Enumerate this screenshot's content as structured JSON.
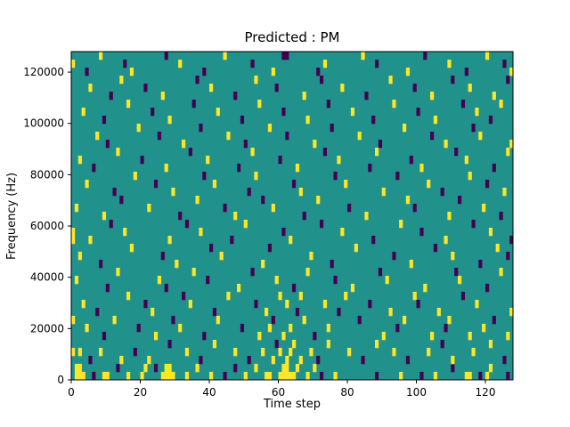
{
  "chart_data": {
    "type": "heatmap",
    "title": "Predicted : PM",
    "xlabel": "Time step",
    "ylabel": "Frequency (Hz)",
    "x_range": [
      0,
      128
    ],
    "y_range": [
      0,
      128000
    ],
    "x_ticks": [
      0,
      20,
      40,
      60,
      80,
      100,
      120
    ],
    "y_ticks": [
      0,
      20000,
      40000,
      60000,
      80000,
      100000,
      120000
    ],
    "grid_cols": 128,
    "grid_rows": 41,
    "colors": {
      "background": "#21918c",
      "low": "#440154",
      "high": "#fde725"
    },
    "legend": "none",
    "grid": false,
    "cells": [
      [
        1,
        0,
        1
      ],
      [
        2,
        0,
        1
      ],
      [
        1,
        1,
        1
      ],
      [
        2,
        1,
        1
      ],
      [
        3,
        0,
        1
      ],
      [
        0,
        3,
        1
      ],
      [
        0,
        7,
        1
      ],
      [
        0,
        17,
        1
      ],
      [
        6,
        0,
        0
      ],
      [
        9,
        0,
        1
      ],
      [
        10,
        0,
        1
      ],
      [
        13,
        1,
        0
      ],
      [
        16,
        0,
        1
      ],
      [
        20,
        0,
        1
      ],
      [
        21,
        1,
        1
      ],
      [
        24,
        1,
        0
      ],
      [
        26,
        0,
        1
      ],
      [
        27,
        0,
        1
      ],
      [
        28,
        0,
        1
      ],
      [
        29,
        0,
        1
      ],
      [
        27,
        1,
        1
      ],
      [
        28,
        1,
        1
      ],
      [
        33,
        0,
        1
      ],
      [
        36,
        1,
        1
      ],
      [
        40,
        0,
        1
      ],
      [
        44,
        0,
        0
      ],
      [
        47,
        1,
        0
      ],
      [
        50,
        0,
        1
      ],
      [
        53,
        1,
        1
      ],
      [
        56,
        0,
        1
      ],
      [
        57,
        0,
        1
      ],
      [
        60,
        0,
        1
      ],
      [
        61,
        0,
        1
      ],
      [
        62,
        0,
        1
      ],
      [
        63,
        0,
        1
      ],
      [
        61,
        1,
        1
      ],
      [
        62,
        1,
        1
      ],
      [
        64,
        0,
        1
      ],
      [
        65,
        1,
        1
      ],
      [
        68,
        0,
        1
      ],
      [
        70,
        1,
        1
      ],
      [
        72,
        0,
        0
      ],
      [
        76,
        0,
        1
      ],
      [
        88,
        0,
        0
      ],
      [
        95,
        0,
        1
      ],
      [
        101,
        0,
        0
      ],
      [
        105,
        0,
        1
      ],
      [
        110,
        1,
        0
      ],
      [
        114,
        0,
        1
      ],
      [
        115,
        0,
        1
      ],
      [
        118,
        0,
        0
      ],
      [
        120,
        0,
        1
      ],
      [
        121,
        1,
        1
      ],
      [
        126,
        0,
        0
      ],
      [
        2,
        3,
        1
      ],
      [
        5,
        2,
        0
      ],
      [
        8,
        3,
        1
      ],
      [
        14,
        2,
        1
      ],
      [
        18,
        3,
        0
      ],
      [
        22,
        2,
        1
      ],
      [
        28,
        4,
        0
      ],
      [
        33,
        3,
        1
      ],
      [
        37,
        2,
        0
      ],
      [
        41,
        4,
        1
      ],
      [
        47,
        3,
        1
      ],
      [
        51,
        2,
        0
      ],
      [
        55,
        3,
        1
      ],
      [
        58,
        2,
        1
      ],
      [
        59,
        4,
        0
      ],
      [
        60,
        3,
        1
      ],
      [
        62,
        2,
        1
      ],
      [
        63,
        3,
        1
      ],
      [
        64,
        4,
        1
      ],
      [
        66,
        2,
        1
      ],
      [
        69,
        3,
        1
      ],
      [
        71,
        2,
        0
      ],
      [
        74,
        4,
        1
      ],
      [
        80,
        3,
        1
      ],
      [
        84,
        2,
        0
      ],
      [
        88,
        4,
        1
      ],
      [
        93,
        3,
        1
      ],
      [
        97,
        2,
        0
      ],
      [
        103,
        3,
        1
      ],
      [
        107,
        4,
        0
      ],
      [
        110,
        2,
        1
      ],
      [
        116,
        3,
        1
      ],
      [
        121,
        4,
        1
      ],
      [
        125,
        2,
        0
      ],
      [
        4,
        6,
        1
      ],
      [
        9,
        5,
        0
      ],
      [
        12,
        7,
        1
      ],
      [
        19,
        6,
        0
      ],
      [
        24,
        5,
        1
      ],
      [
        29,
        7,
        0
      ],
      [
        31,
        6,
        1
      ],
      [
        38,
        5,
        0
      ],
      [
        42,
        7,
        1
      ],
      [
        49,
        6,
        0
      ],
      [
        54,
        5,
        1
      ],
      [
        57,
        6,
        1
      ],
      [
        58,
        7,
        0
      ],
      [
        61,
        5,
        1
      ],
      [
        63,
        6,
        1
      ],
      [
        67,
        7,
        1
      ],
      [
        70,
        5,
        0
      ],
      [
        74,
        6,
        1
      ],
      [
        83,
        7,
        0
      ],
      [
        90,
        5,
        1
      ],
      [
        94,
        6,
        0
      ],
      [
        96,
        7,
        1
      ],
      [
        104,
        5,
        1
      ],
      [
        108,
        6,
        0
      ],
      [
        109,
        7,
        1
      ],
      [
        115,
        5,
        1
      ],
      [
        119,
        6,
        1
      ],
      [
        122,
        7,
        0
      ],
      [
        126,
        5,
        1
      ],
      [
        3,
        9,
        1
      ],
      [
        7,
        8,
        0
      ],
      [
        16,
        10,
        1
      ],
      [
        21,
        9,
        0
      ],
      [
        23,
        8,
        1
      ],
      [
        32,
        10,
        0
      ],
      [
        34,
        9,
        1
      ],
      [
        41,
        8,
        0
      ],
      [
        45,
        10,
        1
      ],
      [
        53,
        9,
        0
      ],
      [
        56,
        8,
        1
      ],
      [
        60,
        10,
        1
      ],
      [
        62,
        9,
        1
      ],
      [
        65,
        8,
        0
      ],
      [
        66,
        10,
        1
      ],
      [
        73,
        9,
        1
      ],
      [
        77,
        8,
        0
      ],
      [
        79,
        10,
        1
      ],
      [
        86,
        9,
        0
      ],
      [
        92,
        8,
        1
      ],
      [
        99,
        10,
        1
      ],
      [
        100,
        9,
        0
      ],
      [
        106,
        8,
        1
      ],
      [
        113,
        10,
        0
      ],
      [
        117,
        9,
        1
      ],
      [
        127,
        8,
        1
      ],
      [
        1,
        12,
        1
      ],
      [
        10,
        11,
        0
      ],
      [
        13,
        13,
        1
      ],
      [
        25,
        12,
        1
      ],
      [
        27,
        11,
        0
      ],
      [
        35,
        13,
        1
      ],
      [
        39,
        12,
        0
      ],
      [
        48,
        11,
        1
      ],
      [
        52,
        13,
        0
      ],
      [
        59,
        12,
        1
      ],
      [
        64,
        11,
        0
      ],
      [
        68,
        13,
        1
      ],
      [
        76,
        12,
        0
      ],
      [
        81,
        11,
        1
      ],
      [
        89,
        13,
        0
      ],
      [
        91,
        12,
        1
      ],
      [
        102,
        11,
        1
      ],
      [
        111,
        13,
        0
      ],
      [
        112,
        12,
        1
      ],
      [
        120,
        11,
        0
      ],
      [
        124,
        13,
        1
      ],
      [
        2,
        15,
        1
      ],
      [
        8,
        14,
        0
      ],
      [
        17,
        16,
        1
      ],
      [
        26,
        15,
        0
      ],
      [
        30,
        14,
        1
      ],
      [
        40,
        16,
        0
      ],
      [
        43,
        15,
        1
      ],
      [
        55,
        14,
        1
      ],
      [
        57,
        16,
        0
      ],
      [
        69,
        15,
        1
      ],
      [
        75,
        14,
        0
      ],
      [
        82,
        16,
        1
      ],
      [
        93,
        15,
        0
      ],
      [
        98,
        14,
        1
      ],
      [
        105,
        16,
        0
      ],
      [
        110,
        15,
        1
      ],
      [
        118,
        14,
        0
      ],
      [
        123,
        16,
        1
      ],
      [
        126,
        15,
        0
      ],
      [
        0,
        18,
        1
      ],
      [
        5,
        17,
        1
      ],
      [
        11,
        19,
        0
      ],
      [
        15,
        18,
        1
      ],
      [
        28,
        17,
        1
      ],
      [
        33,
        19,
        0
      ],
      [
        37,
        18,
        1
      ],
      [
        46,
        17,
        0
      ],
      [
        50,
        19,
        1
      ],
      [
        61,
        18,
        0
      ],
      [
        63,
        17,
        1
      ],
      [
        72,
        19,
        0
      ],
      [
        78,
        18,
        1
      ],
      [
        87,
        17,
        0
      ],
      [
        95,
        19,
        1
      ],
      [
        101,
        18,
        0
      ],
      [
        108,
        17,
        1
      ],
      [
        116,
        19,
        0
      ],
      [
        121,
        18,
        1
      ],
      [
        127,
        17,
        0
      ],
      [
        1,
        21,
        1
      ],
      [
        9,
        20,
        1
      ],
      [
        14,
        22,
        0
      ],
      [
        22,
        21,
        1
      ],
      [
        31,
        20,
        0
      ],
      [
        36,
        22,
        1
      ],
      [
        44,
        21,
        0
      ],
      [
        47,
        20,
        1
      ],
      [
        55,
        22,
        0
      ],
      [
        58,
        21,
        1
      ],
      [
        67,
        20,
        0
      ],
      [
        71,
        22,
        1
      ],
      [
        80,
        21,
        0
      ],
      [
        85,
        20,
        1
      ],
      [
        97,
        22,
        1
      ],
      [
        99,
        21,
        0
      ],
      [
        109,
        20,
        1
      ],
      [
        112,
        22,
        0
      ],
      [
        119,
        21,
        1
      ],
      [
        124,
        20,
        0
      ],
      [
        4,
        24,
        1
      ],
      [
        12,
        23,
        0
      ],
      [
        18,
        25,
        1
      ],
      [
        24,
        24,
        0
      ],
      [
        29,
        23,
        1
      ],
      [
        38,
        25,
        0
      ],
      [
        41,
        24,
        1
      ],
      [
        51,
        23,
        0
      ],
      [
        53,
        25,
        1
      ],
      [
        64,
        24,
        0
      ],
      [
        66,
        23,
        1
      ],
      [
        76,
        25,
        0
      ],
      [
        79,
        24,
        1
      ],
      [
        90,
        23,
        1
      ],
      [
        94,
        25,
        0
      ],
      [
        103,
        24,
        1
      ],
      [
        107,
        23,
        0
      ],
      [
        115,
        25,
        1
      ],
      [
        120,
        24,
        0
      ],
      [
        125,
        23,
        1
      ],
      [
        2,
        27,
        1
      ],
      [
        6,
        26,
        0
      ],
      [
        13,
        28,
        1
      ],
      [
        20,
        27,
        0
      ],
      [
        27,
        26,
        1
      ],
      [
        34,
        28,
        0
      ],
      [
        39,
        27,
        1
      ],
      [
        48,
        26,
        0
      ],
      [
        52,
        28,
        1
      ],
      [
        60,
        27,
        0
      ],
      [
        65,
        26,
        1
      ],
      [
        73,
        28,
        0
      ],
      [
        77,
        27,
        1
      ],
      [
        86,
        26,
        0
      ],
      [
        88,
        28,
        1
      ],
      [
        98,
        27,
        0
      ],
      [
        101,
        26,
        1
      ],
      [
        111,
        28,
        0
      ],
      [
        114,
        27,
        1
      ],
      [
        122,
        26,
        0
      ],
      [
        126,
        28,
        1
      ],
      [
        7,
        30,
        1
      ],
      [
        10,
        29,
        0
      ],
      [
        19,
        31,
        1
      ],
      [
        25,
        30,
        0
      ],
      [
        32,
        29,
        1
      ],
      [
        37,
        31,
        0
      ],
      [
        45,
        30,
        1
      ],
      [
        50,
        29,
        0
      ],
      [
        57,
        31,
        1
      ],
      [
        62,
        30,
        0
      ],
      [
        70,
        29,
        1
      ],
      [
        75,
        31,
        0
      ],
      [
        83,
        30,
        1
      ],
      [
        89,
        29,
        0
      ],
      [
        96,
        31,
        1
      ],
      [
        104,
        30,
        0
      ],
      [
        108,
        29,
        1
      ],
      [
        116,
        31,
        0
      ],
      [
        118,
        30,
        1
      ],
      [
        127,
        29,
        1
      ],
      [
        3,
        33,
        1
      ],
      [
        9,
        32,
        0
      ],
      [
        16,
        34,
        1
      ],
      [
        23,
        33,
        0
      ],
      [
        28,
        32,
        1
      ],
      [
        35,
        34,
        0
      ],
      [
        42,
        33,
        1
      ],
      [
        49,
        32,
        0
      ],
      [
        54,
        34,
        1
      ],
      [
        61,
        33,
        0
      ],
      [
        68,
        32,
        1
      ],
      [
        74,
        34,
        0
      ],
      [
        81,
        33,
        1
      ],
      [
        87,
        32,
        0
      ],
      [
        93,
        34,
        1
      ],
      [
        100,
        33,
        0
      ],
      [
        105,
        32,
        1
      ],
      [
        113,
        34,
        0
      ],
      [
        117,
        33,
        1
      ],
      [
        121,
        32,
        0
      ],
      [
        124,
        34,
        1
      ],
      [
        5,
        36,
        1
      ],
      [
        11,
        35,
        0
      ],
      [
        14,
        37,
        1
      ],
      [
        21,
        36,
        0
      ],
      [
        26,
        35,
        1
      ],
      [
        36,
        37,
        0
      ],
      [
        40,
        36,
        1
      ],
      [
        47,
        35,
        0
      ],
      [
        53,
        37,
        1
      ],
      [
        59,
        36,
        0
      ],
      [
        67,
        35,
        1
      ],
      [
        72,
        37,
        0
      ],
      [
        78,
        36,
        1
      ],
      [
        85,
        35,
        0
      ],
      [
        92,
        37,
        1
      ],
      [
        99,
        36,
        0
      ],
      [
        104,
        35,
        1
      ],
      [
        110,
        37,
        0
      ],
      [
        115,
        36,
        1
      ],
      [
        122,
        35,
        1
      ],
      [
        126,
        37,
        0
      ],
      [
        0,
        39,
        1
      ],
      [
        4,
        38,
        0
      ],
      [
        8,
        40,
        1
      ],
      [
        15,
        39,
        0
      ],
      [
        17,
        38,
        1
      ],
      [
        27,
        40,
        0
      ],
      [
        31,
        39,
        1
      ],
      [
        38,
        38,
        0
      ],
      [
        44,
        40,
        1
      ],
      [
        52,
        39,
        0
      ],
      [
        58,
        38,
        1
      ],
      [
        61,
        40,
        0
      ],
      [
        62,
        40,
        0
      ],
      [
        73,
        39,
        1
      ],
      [
        71,
        38,
        0
      ],
      [
        84,
        40,
        1
      ],
      [
        88,
        39,
        0
      ],
      [
        97,
        38,
        1
      ],
      [
        102,
        40,
        0
      ],
      [
        109,
        39,
        1
      ],
      [
        114,
        38,
        0
      ],
      [
        120,
        40,
        1
      ],
      [
        125,
        39,
        0
      ],
      [
        127,
        38,
        1
      ]
    ]
  }
}
